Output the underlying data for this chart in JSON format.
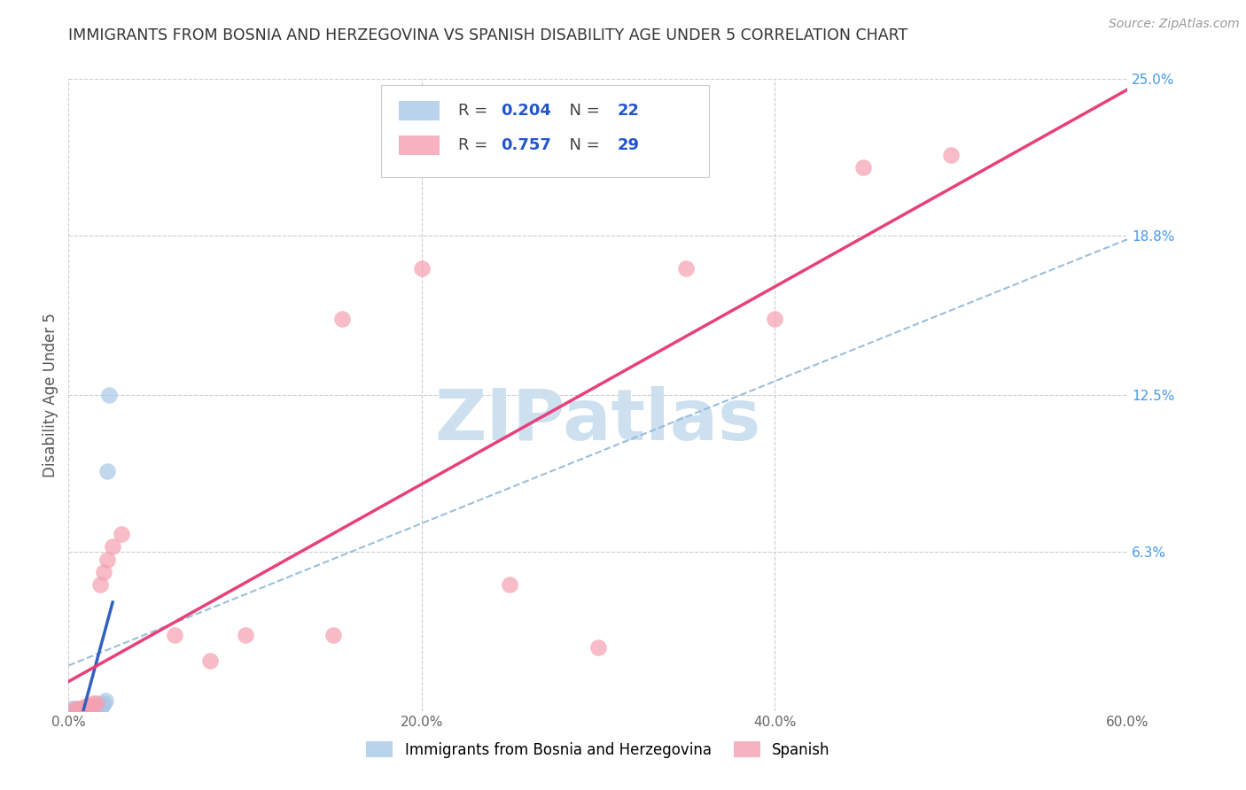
{
  "title": "IMMIGRANTS FROM BOSNIA AND HERZEGOVINA VS SPANISH DISABILITY AGE UNDER 5 CORRELATION CHART",
  "source": "Source: ZipAtlas.com",
  "ylabel": "Disability Age Under 5",
  "xlim": [
    0.0,
    0.6
  ],
  "ylim": [
    0.0,
    0.25
  ],
  "xticks": [
    0.0,
    0.2,
    0.4,
    0.6
  ],
  "xticklabels": [
    "0.0%",
    "20.0%",
    "40.0%",
    "60.0%"
  ],
  "yticks_right": [
    0.063,
    0.125,
    0.188,
    0.25
  ],
  "yticklabels_right": [
    "6.3%",
    "12.5%",
    "18.8%",
    "25.0%"
  ],
  "bosnia_points": [
    [
      0.002,
      0.001
    ],
    [
      0.003,
      0.0
    ],
    [
      0.004,
      0.0
    ],
    [
      0.005,
      0.001
    ],
    [
      0.006,
      0.0
    ],
    [
      0.007,
      0.0
    ],
    [
      0.008,
      0.0
    ],
    [
      0.009,
      0.0
    ],
    [
      0.01,
      0.001
    ],
    [
      0.011,
      0.0
    ],
    [
      0.012,
      0.0
    ],
    [
      0.013,
      0.001
    ],
    [
      0.014,
      0.001
    ],
    [
      0.015,
      0.001
    ],
    [
      0.016,
      0.001
    ],
    [
      0.017,
      0.001
    ],
    [
      0.018,
      0.001
    ],
    [
      0.019,
      0.002
    ],
    [
      0.02,
      0.003
    ],
    [
      0.021,
      0.004
    ],
    [
      0.022,
      0.095
    ],
    [
      0.023,
      0.125
    ]
  ],
  "spanish_points": [
    [
      0.004,
      0.001
    ],
    [
      0.005,
      0.0
    ],
    [
      0.006,
      0.0
    ],
    [
      0.007,
      0.001
    ],
    [
      0.008,
      0.001
    ],
    [
      0.009,
      0.0
    ],
    [
      0.01,
      0.002
    ],
    [
      0.011,
      0.002
    ],
    [
      0.012,
      0.002
    ],
    [
      0.013,
      0.002
    ],
    [
      0.014,
      0.003
    ],
    [
      0.016,
      0.003
    ],
    [
      0.018,
      0.05
    ],
    [
      0.02,
      0.055
    ],
    [
      0.022,
      0.06
    ],
    [
      0.025,
      0.065
    ],
    [
      0.03,
      0.07
    ],
    [
      0.06,
      0.03
    ],
    [
      0.08,
      0.02
    ],
    [
      0.1,
      0.03
    ],
    [
      0.15,
      0.03
    ],
    [
      0.155,
      0.155
    ],
    [
      0.2,
      0.175
    ],
    [
      0.25,
      0.05
    ],
    [
      0.3,
      0.025
    ],
    [
      0.35,
      0.175
    ],
    [
      0.4,
      0.155
    ],
    [
      0.45,
      0.215
    ],
    [
      0.5,
      0.22
    ]
  ],
  "bosnia_color": "#a8c8e8",
  "spanish_color": "#f4a0b0",
  "bosnia_line_color": "#3060c0",
  "spanish_line_color": "#e8407a",
  "dashed_line_color": "#90b8d8",
  "background_color": "#ffffff",
  "grid_color": "#cccccc",
  "title_color": "#333333",
  "right_tick_color": "#4499ee",
  "legend_r_color": "#2255cc",
  "legend_n_color": "#2255cc",
  "legend_label_color": "#555555",
  "watermark_text": "ZIPatlas",
  "watermark_color": "#cce0f0",
  "r_bosnia": "0.204",
  "n_bosnia": "22",
  "r_spanish": "0.757",
  "n_spanish": "29",
  "bottom_legend_label1": "Immigrants from Bosnia and Herzegovina",
  "bottom_legend_label2": "Spanish"
}
